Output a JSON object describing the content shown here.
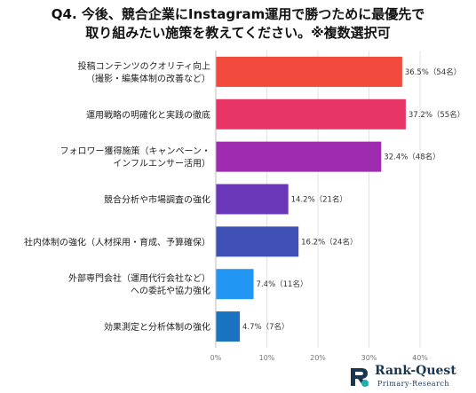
{
  "title": {
    "line1": "Q4. 今後、競合企業にInstagram運用で勝つために最優先で",
    "line2": "取り組みたい施策を教えてください。※複数選択可"
  },
  "chart_data": {
    "type": "bar",
    "orientation": "horizontal",
    "categories": [
      [
        "投稿コンテンツのクオリティ向上",
        "（撮影・編集体制の改善など）"
      ],
      [
        "運用戦略の明確化と実践の徹底"
      ],
      [
        "フォロワー獲得施策（キャンペーン・",
        "インフルエンサー活用）"
      ],
      [
        "競合分析や市場調査の強化"
      ],
      [
        "社内体制の強化（人材採用・育成、予算確保）"
      ],
      [
        "外部専門会社（運用代行会社など）",
        "への委託や協力強化"
      ],
      [
        "効果測定と分析体制の強化"
      ]
    ],
    "values": [
      36.5,
      37.2,
      32.4,
      14.2,
      16.2,
      7.4,
      4.7
    ],
    "data_labels": [
      "36.5%（54名）",
      "37.2%（55名）",
      "32.4%（48名）",
      "14.2%（21名）",
      "16.2%（24名）",
      "7.4%（11名）",
      "4.7%（7名）"
    ],
    "bar_colors": [
      "#f24a3c",
      "#e83565",
      "#9e2bb0",
      "#6a37b8",
      "#3f51b5",
      "#2196f3",
      "#1a73c0"
    ],
    "xlim": [
      0,
      40
    ],
    "xticks": [
      "0%",
      "10%",
      "20%",
      "30%",
      "40%"
    ],
    "grid": true
  },
  "logo": {
    "name": "Rank-Quest",
    "sub": "Primary-Research"
  }
}
